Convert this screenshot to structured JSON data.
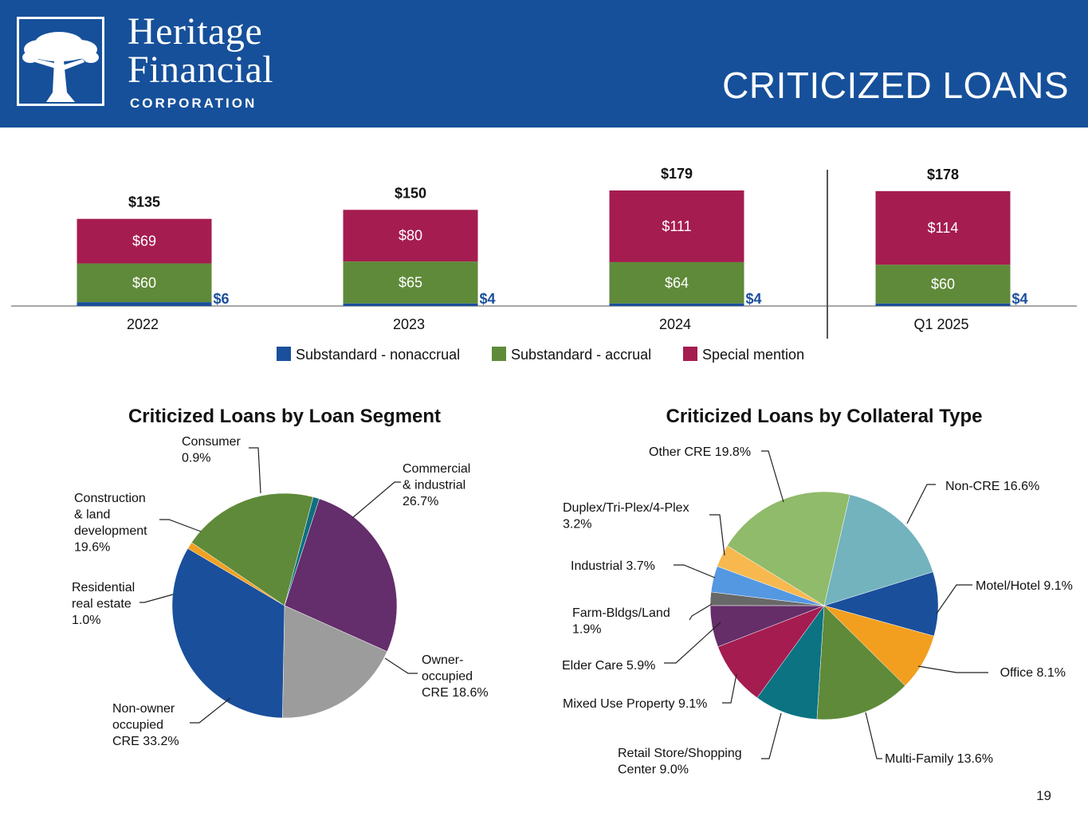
{
  "header": {
    "logo_line1": "Heritage",
    "logo_line2": "Financial",
    "logo_line3": "CORPORATION",
    "title": "CRITICIZED LOANS"
  },
  "page_number": "19",
  "colors": {
    "header_blue": "#16509a",
    "nonaccrual": "#1a4f9b",
    "accrual": "#5f8a39",
    "special": "#a51c50"
  },
  "chart_data": [
    {
      "type": "bar",
      "stacked": true,
      "categories": [
        "2022",
        "2023",
        "2024",
        "Q1 2025"
      ],
      "series": [
        {
          "name": "Substandard - nonaccrual",
          "color": "#1a4f9b",
          "values": [
            6,
            4,
            4,
            4
          ],
          "labels": [
            "$6",
            "$4",
            "$4",
            "$4"
          ]
        },
        {
          "name": "Substandard - accrual",
          "color": "#5f8a39",
          "values": [
            60,
            65,
            64,
            60
          ],
          "labels": [
            "$60",
            "$65",
            "$64",
            "$60"
          ]
        },
        {
          "name": "Special mention",
          "color": "#a51c50",
          "values": [
            69,
            80,
            111,
            114
          ],
          "labels": [
            "$69",
            "$80",
            "$111",
            "$114"
          ]
        }
      ],
      "totals": [
        "$135",
        "$150",
        "$179",
        "$178"
      ],
      "legend_position": "bottom",
      "separator_after": "2024"
    },
    {
      "type": "pie",
      "title": "Criticized Loans by Loan Segment",
      "slices": [
        {
          "name": "Commercial & industrial",
          "label": "Commercial\n& industrial\n26.7%",
          "value": 26.7,
          "color": "#642d6b"
        },
        {
          "name": "Owner-occupied CRE",
          "label": "Owner-\noccupied\nCRE 18.6%",
          "value": 18.6,
          "color": "#9c9c9c"
        },
        {
          "name": "Non-owner occupied CRE",
          "label": "Non-owner\noccupied\nCRE 33.2%",
          "value": 33.2,
          "color": "#1a4f9b"
        },
        {
          "name": "Residential real estate",
          "label": "Residential\nreal estate\n1.0%",
          "value": 1.0,
          "color": "#f0a122"
        },
        {
          "name": "Construction & land development",
          "label": "Construction\n& land\ndevelopment\n19.6%",
          "value": 19.6,
          "color": "#5f8a39"
        },
        {
          "name": "Consumer",
          "label": "Consumer\n0.9%",
          "value": 0.9,
          "color": "#0e6f80"
        }
      ]
    },
    {
      "type": "pie",
      "title": "Criticized Loans by Collateral Type",
      "slices": [
        {
          "name": "Non-CRE",
          "label": "Non-CRE 16.6%",
          "value": 16.6,
          "color": "#72b3be"
        },
        {
          "name": "Motel/Hotel",
          "label": "Motel/Hotel 9.1%",
          "value": 9.1,
          "color": "#1a4f9b"
        },
        {
          "name": "Office",
          "label": "Office 8.1%",
          "value": 8.1,
          "color": "#f29f1f"
        },
        {
          "name": "Multi-Family",
          "label": "Multi-Family 13.6%",
          "value": 13.6,
          "color": "#5f8a39"
        },
        {
          "name": "Retail Store/Shopping Center",
          "label": "Retail Store/Shopping\nCenter 9.0%",
          "value": 9.0,
          "color": "#0b7382"
        },
        {
          "name": "Mixed Use Property",
          "label": "Mixed Use Property 9.1%",
          "value": 9.1,
          "color": "#a51c50"
        },
        {
          "name": "Elder Care",
          "label": "Elder Care 5.9%",
          "value": 5.9,
          "color": "#652e69"
        },
        {
          "name": "Farm-Bldgs/Land",
          "label": "Farm-Bldgs/Land\n1.9%",
          "value": 1.9,
          "color": "#686868"
        },
        {
          "name": "Industrial",
          "label": "Industrial 3.7%",
          "value": 3.7,
          "color": "#5498e2"
        },
        {
          "name": "Duplex/Tri-Plex/4-Plex",
          "label": "Duplex/Tri-Plex/4-Plex\n3.2%",
          "value": 3.2,
          "color": "#f7b94f"
        },
        {
          "name": "Other CRE",
          "label": "Other CRE 19.8%",
          "value": 19.8,
          "color": "#90bb6a"
        }
      ]
    }
  ]
}
